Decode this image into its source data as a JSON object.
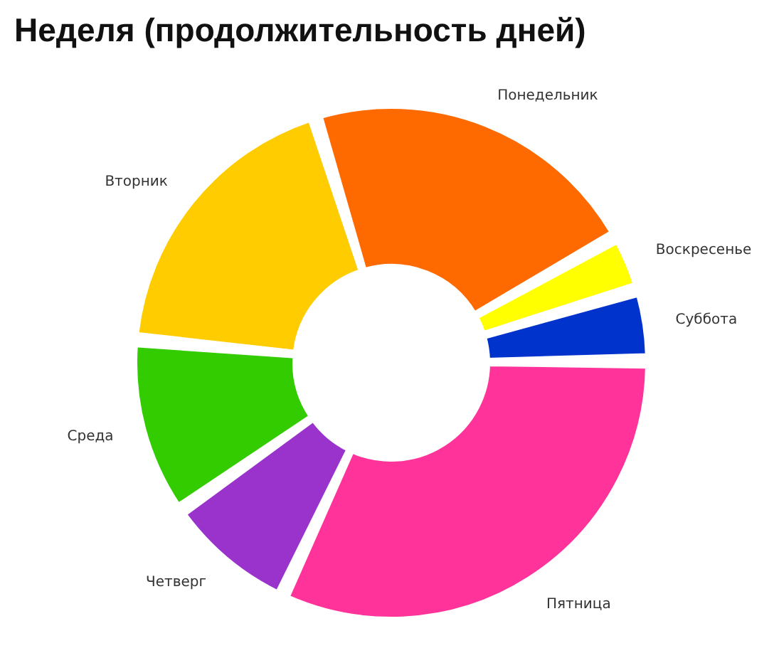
{
  "chart_data": {
    "type": "donut",
    "title": "Неделя (продолжительность дней)",
    "categories": [
      "Понедельник",
      "Воскресенье",
      "Суббота",
      "Пятница",
      "Четверг",
      "Среда",
      "Вторник"
    ],
    "values": [
      22,
      3,
      4,
      33,
      8,
      11,
      19
    ],
    "colors": [
      "#ff6a00",
      "#ffff00",
      "#0033cc",
      "#ff3399",
      "#9933cc",
      "#33cc00",
      "#ffcc00"
    ],
    "legend": false
  }
}
